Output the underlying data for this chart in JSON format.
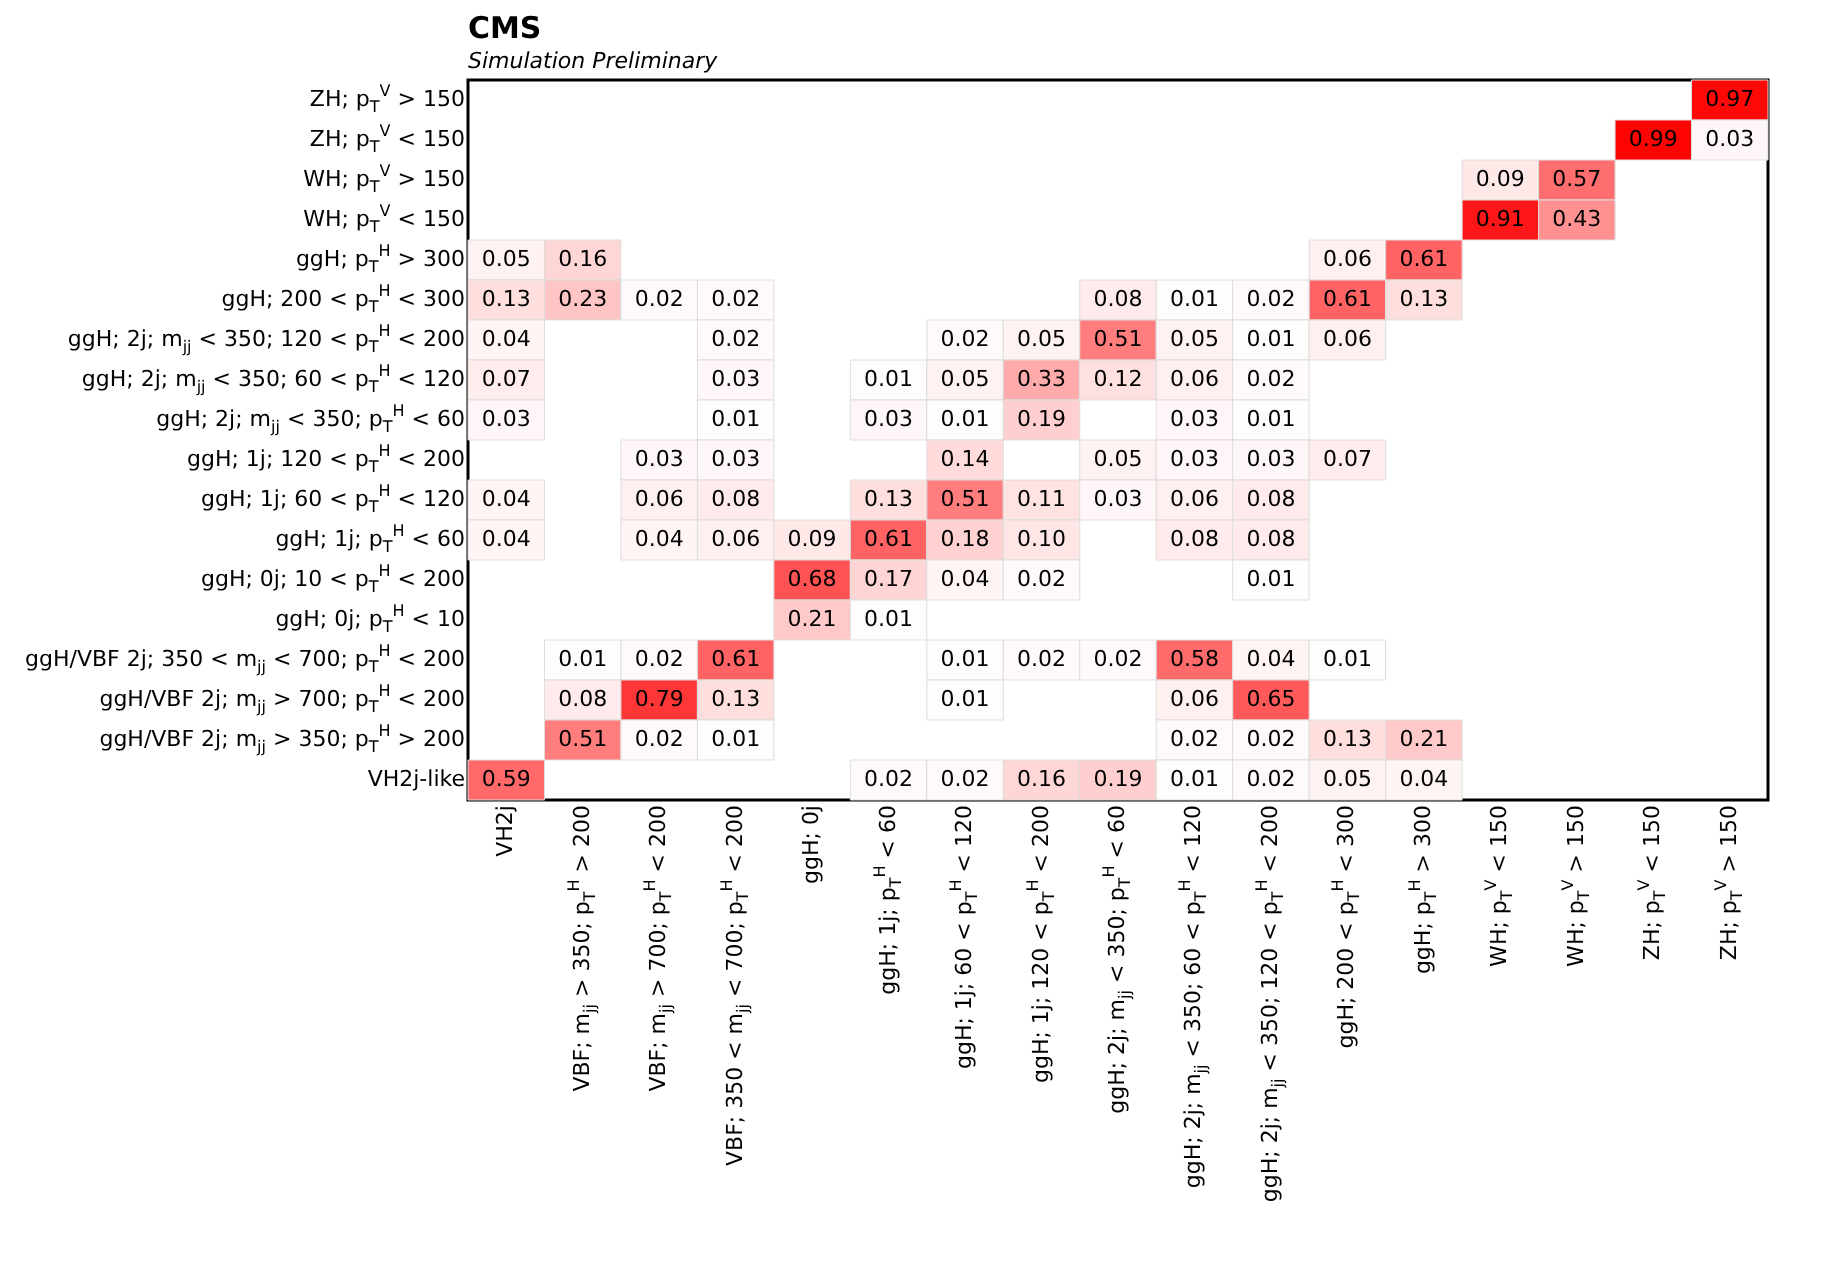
{
  "chart_data": {
    "type": "heatmap",
    "title": "CMS",
    "subtitle": "Simulation Preliminary",
    "categories": [
      "VH2j",
      "VBF; m$_{jj}$ > 350; p$_{T}$$^{H}$ > 200",
      "VBF; m$_{jj}$ > 700; p$_{T}$$^{H}$ < 200",
      "VBF; 350 < m$_{jj}$ < 700; p$_{T}$$^{H}$ < 200",
      "ggH; 0j",
      "ggH; 1j; p$_{T}$$^{H}$ < 60",
      "ggH; 1j; 60 < p$_{T}$$^{H}$ < 120",
      "ggH; 1j; 120 < p$_{T}$$^{H}$ < 200",
      "ggH; 2j; m$_{jj}$ < 350; p$_{T}$$^{H}$ < 60",
      "ggH; 2j; m$_{jj}$ < 350; 60 < p$_{T}$$^{H}$ < 120",
      "ggH; 2j; m$_{jj}$ < 350; 120 < p$_{T}$$^{H}$ < 200",
      "ggH; 200 < p$_{T}$$^{H}$ < 300",
      "ggH; p$_{T}$$^{H}$ > 300",
      "WH; p$_{T}$$^{V}$ < 150",
      "WH; p$_{T}$$^{V}$ > 150",
      "ZH; p$_{T}$$^{V}$ < 150",
      "ZH; p$_{T}$$^{V}$ > 150"
    ],
    "y_categories": [
      "ZH; p$_{T}$$^{V}$ > 150",
      "ZH; p$_{T}$$^{V}$ < 150",
      "WH; p$_{T}$$^{V}$ > 150",
      "WH; p$_{T}$$^{V}$ < 150",
      "ggH; p$_{T}$$^{H}$ > 300",
      "ggH; 200 < p$_{T}$$^{H}$ < 300",
      "ggH; 2j; m$_{jj}$ < 350; 120 < p$_{T}$$^{H}$ < 200",
      "ggH; 2j; m$_{jj}$ < 350; 60 < p$_{T}$$^{H}$ < 120",
      "ggH; 2j; m$_{jj}$ < 350; p$_{T}$$^{H}$ < 60",
      "ggH; 1j; 120 < p$_{T}$$^{H}$ < 200",
      "ggH; 1j; 60 < p$_{T}$$^{H}$ < 120",
      "ggH; 1j; p$_{T}$$^{H}$ < 60",
      "ggH; 0j; 10 < p$_{T}$$^{H}$ < 200",
      "ggH; 0j; p$_{T}$$^{H}$ < 10",
      "ggH/VBF 2j; 350 < m$_{jj}$ < 700; p$_{T}$$^{H}$ < 200",
      "ggH/VBF 2j; m$_{jj}$ > 700; p$_{T}$$^{H}$ < 200",
      "ggH/VBF 2j; m$_{jj}$ > 350; p$_{T}$$^{H}$ > 200",
      "VH2j-like"
    ],
    "cells": [
      [
        null,
        null,
        null,
        null,
        null,
        null,
        null,
        null,
        null,
        null,
        null,
        null,
        null,
        null,
        null,
        null,
        0.97
      ],
      [
        null,
        null,
        null,
        null,
        null,
        null,
        null,
        null,
        null,
        null,
        null,
        null,
        null,
        null,
        null,
        0.99,
        0.03
      ],
      [
        null,
        null,
        null,
        null,
        null,
        null,
        null,
        null,
        null,
        null,
        null,
        null,
        null,
        0.09,
        0.57,
        null,
        null
      ],
      [
        null,
        null,
        null,
        null,
        null,
        null,
        null,
        null,
        null,
        null,
        null,
        null,
        null,
        0.91,
        0.43,
        null,
        null
      ],
      [
        0.05,
        0.16,
        null,
        null,
        null,
        null,
        null,
        null,
        null,
        null,
        null,
        0.06,
        0.61,
        null,
        null,
        null,
        null
      ],
      [
        0.13,
        0.23,
        0.02,
        0.02,
        null,
        null,
        null,
        null,
        0.08,
        0.01,
        0.02,
        0.61,
        0.13,
        null,
        null,
        null,
        null
      ],
      [
        0.04,
        null,
        null,
        0.02,
        null,
        null,
        0.02,
        0.05,
        0.51,
        0.05,
        0.01,
        0.06,
        null,
        null,
        null,
        null,
        null
      ],
      [
        0.07,
        null,
        null,
        0.03,
        null,
        0.01,
        0.05,
        0.33,
        0.12,
        0.06,
        0.02,
        null,
        null,
        null,
        null,
        null,
        null
      ],
      [
        0.03,
        null,
        null,
        0.01,
        null,
        0.03,
        0.01,
        0.19,
        null,
        0.03,
        0.01,
        null,
        null,
        null,
        null,
        null,
        null
      ],
      [
        null,
        null,
        0.03,
        0.03,
        null,
        null,
        0.14,
        null,
        0.05,
        0.03,
        0.03,
        0.07,
        null,
        null,
        null,
        null,
        null
      ],
      [
        0.04,
        null,
        0.06,
        0.08,
        null,
        0.13,
        0.51,
        0.11,
        0.03,
        0.06,
        0.08,
        null,
        null,
        null,
        null,
        null,
        null
      ],
      [
        0.04,
        null,
        0.04,
        0.06,
        0.09,
        0.61,
        0.18,
        0.1,
        null,
        0.08,
        0.08,
        null,
        null,
        null,
        null,
        null,
        null
      ],
      [
        null,
        null,
        null,
        null,
        0.68,
        0.17,
        0.04,
        0.02,
        null,
        null,
        0.01,
        null,
        null,
        null,
        null,
        null,
        null
      ],
      [
        null,
        null,
        null,
        null,
        0.21,
        0.01,
        null,
        null,
        null,
        null,
        null,
        null,
        null,
        null,
        null,
        null,
        null
      ],
      [
        null,
        0.01,
        0.02,
        0.61,
        null,
        null,
        0.01,
        0.02,
        0.02,
        0.58,
        0.04,
        0.01,
        null,
        null,
        null,
        null,
        null
      ],
      [
        null,
        0.08,
        0.79,
        0.13,
        null,
        null,
        0.01,
        null,
        null,
        0.06,
        0.65,
        null,
        null,
        null,
        null,
        null,
        null
      ],
      [
        null,
        0.51,
        0.02,
        0.01,
        null,
        null,
        null,
        null,
        null,
        0.02,
        0.02,
        0.13,
        0.21,
        null,
        null,
        null,
        null
      ],
      [
        0.59,
        null,
        null,
        null,
        null,
        0.02,
        0.02,
        0.16,
        0.19,
        0.01,
        0.02,
        0.05,
        0.04,
        null,
        null,
        null,
        null
      ]
    ],
    "cell_labels": [
      [
        null,
        null,
        null,
        null,
        null,
        null,
        null,
        null,
        null,
        null,
        null,
        null,
        null,
        null,
        null,
        null,
        "0.97"
      ],
      [
        null,
        null,
        null,
        null,
        null,
        null,
        null,
        null,
        null,
        null,
        null,
        null,
        null,
        null,
        null,
        "0.99",
        "0.03"
      ],
      [
        null,
        null,
        null,
        null,
        null,
        null,
        null,
        null,
        null,
        null,
        null,
        null,
        null,
        "0.09",
        "0.57",
        null,
        null
      ],
      [
        null,
        null,
        null,
        null,
        null,
        null,
        null,
        null,
        null,
        null,
        null,
        null,
        null,
        "0.91",
        "0.43",
        null,
        null
      ],
      [
        "0.05",
        "0.16",
        null,
        null,
        null,
        null,
        null,
        null,
        null,
        null,
        null,
        "0.06",
        "0.61",
        null,
        null,
        null,
        null
      ],
      [
        "0.13",
        "0.23",
        "0.02",
        "0.02",
        null,
        null,
        null,
        null,
        "0.08",
        "0.01",
        "0.02",
        "0.61",
        "0.13",
        null,
        null,
        null,
        null
      ],
      [
        "0.04",
        null,
        null,
        "0.02",
        null,
        null,
        "0.02",
        "0.05",
        "0.51",
        "0.05",
        "0.01",
        "0.06",
        null,
        null,
        null,
        null,
        null
      ],
      [
        "0.07",
        null,
        null,
        "0.03",
        null,
        "0.01",
        "0.05",
        "0.33",
        "0.12",
        "0.06",
        "0.02",
        null,
        null,
        null,
        null,
        null,
        null
      ],
      [
        "0.03",
        null,
        null,
        "0.01",
        null,
        "0.03",
        "0.01",
        "0.19",
        null,
        "0.03",
        "0.01",
        null,
        null,
        null,
        null,
        null,
        null
      ],
      [
        null,
        null,
        "0.03",
        "0.03",
        null,
        null,
        "0.14",
        null,
        "0.05",
        "0.03",
        "0.03",
        "0.07",
        null,
        null,
        null,
        null,
        null
      ],
      [
        "0.04",
        null,
        "0.06",
        "0.08",
        null,
        "0.13",
        "0.51",
        "0.11",
        "0.03",
        "0.06",
        "0.08",
        null,
        null,
        null,
        null,
        null,
        null
      ],
      [
        "0.04",
        null,
        "0.04",
        "0.06",
        "0.09",
        "0.61",
        "0.18",
        "0.10",
        null,
        "0.08",
        "0.08",
        null,
        null,
        null,
        null,
        null,
        null
      ],
      [
        null,
        null,
        null,
        null,
        "0.68",
        "0.17",
        "0.04",
        "0.02",
        null,
        null,
        "0.01",
        null,
        null,
        null,
        null,
        null,
        null
      ],
      [
        null,
        null,
        null,
        null,
        "0.21",
        "0.01",
        null,
        null,
        null,
        null,
        null,
        null,
        null,
        null,
        null,
        null,
        null
      ],
      [
        null,
        "0.01",
        "0.02",
        "0.61",
        null,
        null,
        "0.01",
        "0.02",
        "0.02",
        "0.58",
        "0.04",
        "0.01",
        null,
        null,
        null,
        null,
        null
      ],
      [
        null,
        "0.08",
        "0.79",
        "0.13",
        null,
        null,
        "0.01",
        null,
        null,
        "0.06",
        "0.65",
        null,
        null,
        null,
        null,
        null,
        null
      ],
      [
        null,
        "0.51",
        "0.02",
        "0.01",
        null,
        null,
        null,
        null,
        null,
        "0.02",
        "0.02",
        "0.13",
        "0.21",
        null,
        null,
        null,
        null
      ],
      [
        "0.59",
        null,
        null,
        null,
        null,
        "0.02",
        "0.02",
        "0.16",
        "0.19",
        "0.01",
        "0.02",
        "0.05",
        "0.04",
        null,
        null,
        null,
        null
      ]
    ]
  }
}
